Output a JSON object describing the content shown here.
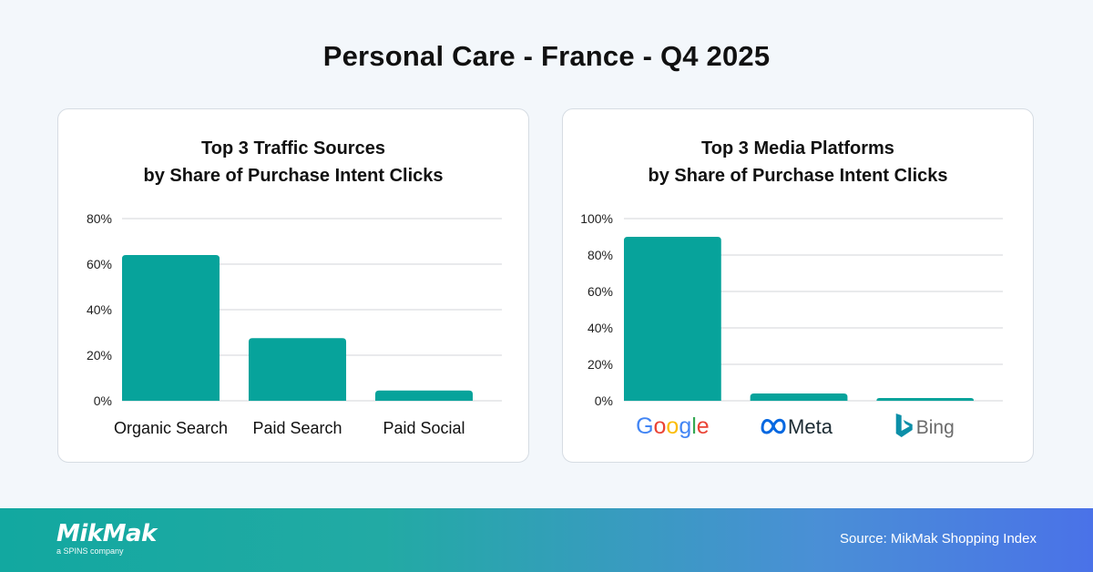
{
  "page": {
    "title": "Personal Care - France - Q4 2025"
  },
  "chart_data": [
    {
      "type": "bar",
      "title_lines": [
        "Top 3 Traffic Sources",
        "by Share of Purchase Intent Clicks"
      ],
      "categories": [
        "Organic Search",
        "Paid Search",
        "Paid Social"
      ],
      "values": [
        64,
        27.5,
        4.5
      ],
      "ylim": [
        0,
        80
      ],
      "yticks": [
        0,
        20,
        40,
        60,
        80
      ],
      "tick_labels": [
        "0%",
        "20%",
        "40%",
        "60%",
        "80%"
      ],
      "xlabel": "",
      "ylabel": "",
      "grid": true,
      "bar_color": "#07a39b"
    },
    {
      "type": "bar",
      "title_lines": [
        "Top 3 Media Platforms",
        "by Share of Purchase Intent Clicks"
      ],
      "categories": [
        "Google",
        "Meta",
        "Bing"
      ],
      "values": [
        90,
        4,
        1.5
      ],
      "ylim": [
        0,
        100
      ],
      "yticks": [
        0,
        20,
        40,
        60,
        80,
        100
      ],
      "tick_labels": [
        "0%",
        "20%",
        "40%",
        "60%",
        "80%",
        "100%"
      ],
      "xlabel": "",
      "ylabel": "",
      "grid": true,
      "bar_color": "#07a39b",
      "category_logos": [
        "google-logo",
        "meta-logo",
        "bing-logo"
      ]
    }
  ],
  "footer": {
    "logo_text": "MikMak",
    "logo_subtext": "a SPINS company",
    "source": "Source: MikMak Shopping Index"
  },
  "colors": {
    "bar": "#07a39b",
    "google_blue": "#4285F4",
    "google_red": "#EA4335",
    "google_yellow": "#FBBC05",
    "google_green": "#34A853",
    "meta_blue": "#0668E1",
    "bing_teal": "#0C8FA8"
  }
}
